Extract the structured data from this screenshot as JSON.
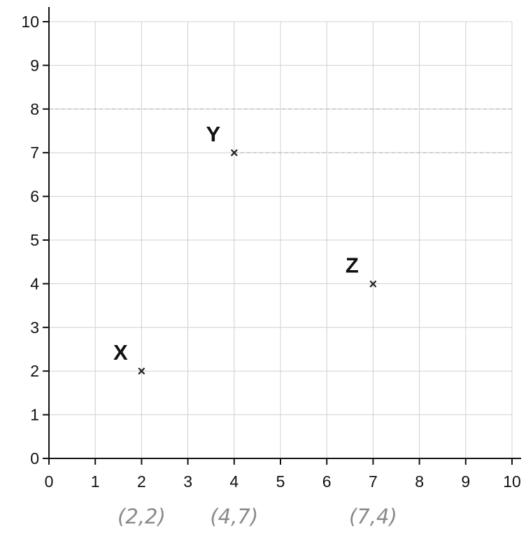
{
  "chart_data": {
    "type": "scatter",
    "title": "",
    "xlabel": "",
    "ylabel": "",
    "xlim": [
      0,
      10
    ],
    "ylim": [
      0,
      10
    ],
    "x_ticks": [
      "0",
      "1",
      "2",
      "3",
      "4",
      "5",
      "6",
      "7",
      "8",
      "9",
      "10"
    ],
    "y_ticks": [
      "0",
      "1",
      "2",
      "3",
      "4",
      "5",
      "6",
      "7",
      "8",
      "9",
      "10"
    ],
    "grid": true,
    "marker": "x",
    "points": [
      {
        "label": "X",
        "x": 2,
        "y": 2,
        "annotation": "(2,2)"
      },
      {
        "label": "Y",
        "x": 4,
        "y": 7,
        "annotation": "(4,7)"
      },
      {
        "label": "Z",
        "x": 7,
        "y": 4,
        "annotation": "(7,4)"
      }
    ],
    "guide_lines": [
      {
        "orientation": "horizontal",
        "y": 8,
        "x_from": 0,
        "x_to": 10
      },
      {
        "orientation": "horizontal",
        "y": 7,
        "x_from": 4,
        "x_to": 10
      }
    ]
  }
}
